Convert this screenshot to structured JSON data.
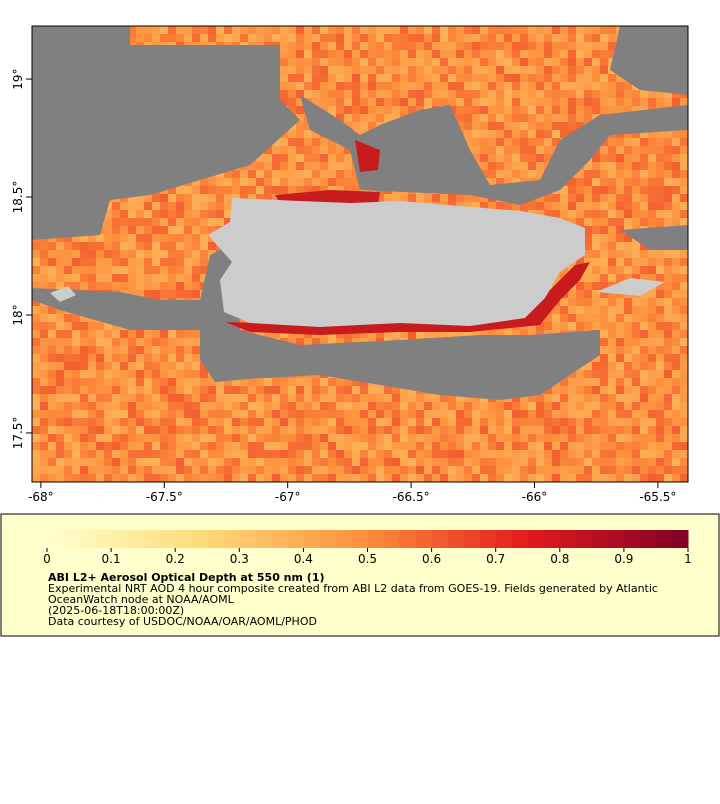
{
  "map": {
    "xlim": [
      -68.036,
      -65.378
    ],
    "ylim": [
      17.292,
      19.225
    ],
    "xticks": [
      {
        "value": -68,
        "label": "-68°"
      },
      {
        "value": -67.5,
        "label": "-67.5°"
      },
      {
        "value": -67,
        "label": "-67°"
      },
      {
        "value": -66.5,
        "label": "-66.5°"
      },
      {
        "value": -66,
        "label": "-66°"
      },
      {
        "value": -65.5,
        "label": "-65.5°"
      }
    ],
    "yticks": [
      {
        "value": 17.5,
        "label": "17.5°"
      },
      {
        "value": 18,
        "label": "18°"
      },
      {
        "value": 18.5,
        "label": "18.5°"
      },
      {
        "value": 19,
        "label": "19°"
      }
    ],
    "colorbar": {
      "lim": [
        0,
        1
      ],
      "ticks": [
        0,
        0.1,
        0.2,
        0.3,
        0.4,
        0.5,
        0.6,
        0.7,
        0.8,
        0.9,
        1
      ],
      "colormap": [
        "#ffffcc",
        "#fed976",
        "#fd8d3c",
        "#e31a1c",
        "#800026"
      ]
    },
    "title": "ABI L2+ Aerosol Optical Depth at 550 nm (1)",
    "description": [
      "Experimental NRT AOD 4 hour composite created from ABI L2 data from GOES-19. Fields generated by Atlantic",
      "OceanWatch node at NOAA/AOML",
      "(2025-06-18T18:00:00Z)",
      "Data courtesy of USDOC/NOAA/OAR/AOML/PHOD"
    ]
  }
}
